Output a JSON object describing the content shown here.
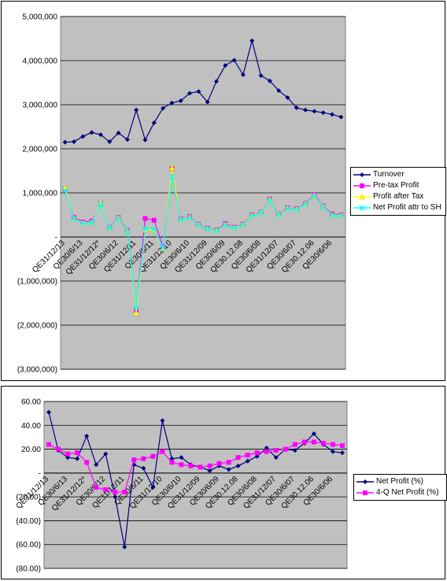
{
  "charts": [
    {
      "id": "c1",
      "type": "line",
      "ylim": [
        -3000000,
        5000000
      ],
      "ystep": 1000000,
      "ytick_labels": [
        "(3,000,000)",
        "(2,000,000)",
        "(1,000,000)",
        "-",
        "1,000,000",
        "2,000,000",
        "3,000,000",
        "4,000,000",
        "5,000,000"
      ],
      "x_tick_labels": [
        "QE31/12/13",
        "QE30/6/13",
        "QE31/12/12*",
        "QE30/6/12",
        "QE31/12/11",
        "QE30/6/11",
        "QE31/12/10",
        "QE30/6/10",
        "QE31/12/09",
        "QE30/6/09",
        "QE30.12.08",
        "QE30/6/08",
        "QE31/12/07",
        "QE30/6/07",
        "QE30.12.06",
        "QE30/6/06"
      ],
      "n_points": 32,
      "series": [
        {
          "name": "Turnover",
          "color": "#000080",
          "marker": "diamond",
          "values": [
            2150000,
            2160000,
            2280000,
            2370000,
            2320000,
            2160000,
            2360000,
            2210000,
            2880000,
            2200000,
            2590000,
            2920000,
            3040000,
            3090000,
            3260000,
            3300000,
            3060000,
            3530000,
            3890000,
            4010000,
            3680000,
            4450000,
            3660000,
            3540000,
            3320000,
            3160000,
            2930000,
            2880000,
            2850000,
            2820000,
            2780000,
            2720000
          ]
        },
        {
          "name": "Pre-tax Profit",
          "color": "#ff00ff",
          "marker": "square",
          "values": [
            1080000,
            440000,
            340000,
            360000,
            760000,
            220000,
            440000,
            150000,
            -1660000,
            420000,
            380000,
            -230000,
            1550000,
            410000,
            460000,
            290000,
            200000,
            160000,
            300000,
            220000,
            290000,
            500000,
            560000,
            860000,
            510000,
            660000,
            640000,
            760000,
            960000,
            700000,
            520000,
            500000
          ]
        },
        {
          "name": "Profit after Tax",
          "color": "#ffff00",
          "marker": "triangle",
          "values": [
            1120000,
            420000,
            320000,
            330000,
            780000,
            210000,
            430000,
            140000,
            -1720000,
            160000,
            160000,
            -260000,
            1570000,
            400000,
            450000,
            280000,
            190000,
            150000,
            280000,
            210000,
            280000,
            490000,
            550000,
            850000,
            500000,
            650000,
            630000,
            750000,
            940000,
            690000,
            500000,
            490000
          ]
        },
        {
          "name": "Net Profit attr to SH",
          "color": "#00ffff",
          "marker": "x",
          "values": [
            1060000,
            410000,
            310000,
            320000,
            740000,
            200000,
            420000,
            130000,
            -1600000,
            190000,
            180000,
            -250000,
            1370000,
            390000,
            440000,
            270000,
            180000,
            140000,
            270000,
            200000,
            270000,
            480000,
            540000,
            830000,
            490000,
            640000,
            620000,
            740000,
            930000,
            680000,
            490000,
            480000
          ]
        }
      ]
    },
    {
      "id": "c2",
      "type": "line",
      "ylim": [
        -80,
        60
      ],
      "ystep": 20,
      "ytick_labels": [
        "(80.00)",
        "(60.00)",
        "(40.00)",
        "(20.00)",
        "-",
        "20.00",
        "40.00",
        "60.00"
      ],
      "x_tick_labels": [
        "QE31/12/13",
        "QE30/6/13",
        "QE31/12/12*",
        "QE30/6/12",
        "QE31/12/11",
        "QE30/6/11",
        "QE31/12/10",
        "QE30/6/10",
        "QE31/12/09",
        "QE30/6/09",
        "QE30.12.08",
        "QE30/6/08",
        "QE31/12/07",
        "QE30/6/07",
        "QE30.12.06",
        "QE30/6/06"
      ],
      "n_points": 32,
      "series": [
        {
          "name": "Net Profit (%)",
          "color": "#000080",
          "marker": "diamond",
          "values": [
            51,
            19,
            13,
            12,
            31,
            7,
            16,
            -20,
            -62,
            7,
            4,
            -12,
            44,
            12,
            13,
            7,
            5,
            2,
            6,
            3,
            6,
            10,
            14,
            21,
            13,
            20,
            19,
            25,
            33,
            24,
            18,
            17
          ]
        },
        {
          "name": "4-Q Net Profit (%)",
          "color": "#ff00ff",
          "marker": "square",
          "values": [
            24,
            20,
            16,
            17,
            9,
            -12,
            -14,
            -16,
            -16,
            11,
            12,
            14,
            18,
            9,
            7,
            6,
            5,
            6,
            8,
            9,
            13,
            15,
            17,
            18,
            19,
            20,
            24,
            26,
            26,
            25,
            24,
            23
          ]
        }
      ]
    }
  ]
}
